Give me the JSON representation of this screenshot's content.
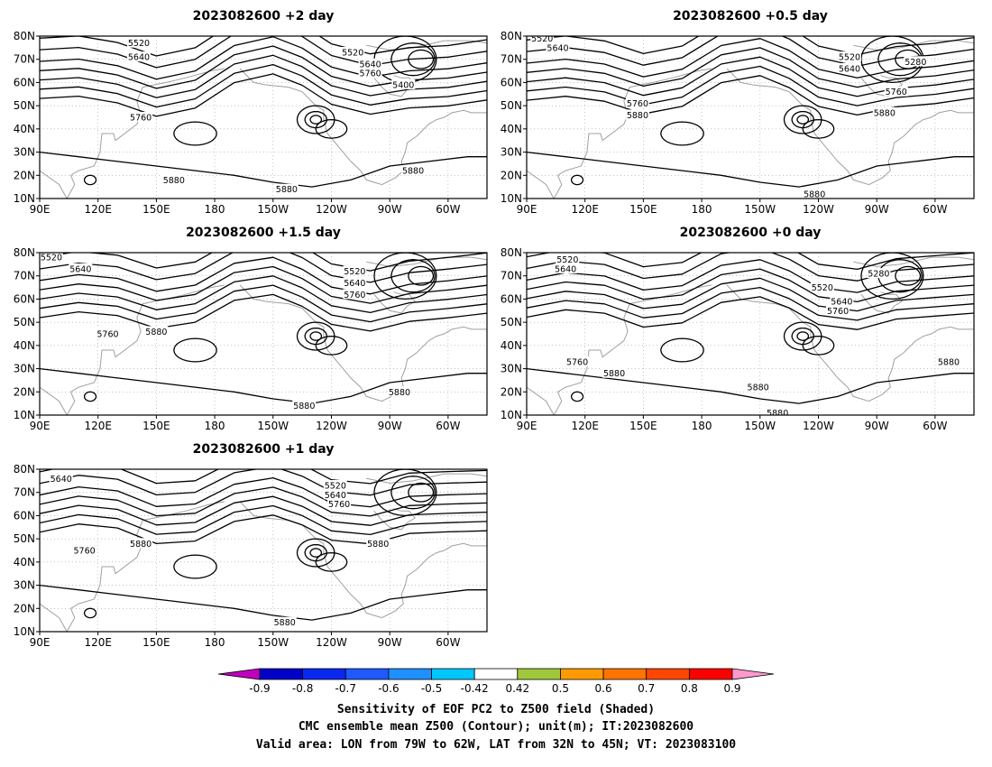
{
  "panels": [
    {
      "title": "2023082600 +2 day",
      "contour_labels": [
        {
          "text": "5520",
          "lon": 141,
          "lat": 77
        },
        {
          "text": "5640",
          "lon": 141,
          "lat": 71
        },
        {
          "text": "5760",
          "lon": 142,
          "lat": 45
        },
        {
          "text": "5520",
          "lon": 251,
          "lat": 73
        },
        {
          "text": "5640",
          "lon": 260,
          "lat": 68
        },
        {
          "text": "5760",
          "lon": 260,
          "lat": 64
        },
        {
          "text": "5400",
          "lon": 277,
          "lat": 59
        },
        {
          "text": "5880",
          "lon": 159,
          "lat": 18
        },
        {
          "text": "5880",
          "lon": 217,
          "lat": 14
        },
        {
          "text": "5880",
          "lon": 282,
          "lat": 22
        }
      ]
    },
    {
      "title": "2023082600 +0.5 day",
      "contour_labels": [
        {
          "text": "5520",
          "lon": 98,
          "lat": 79
        },
        {
          "text": "5640",
          "lon": 106,
          "lat": 75
        },
        {
          "text": "5760",
          "lon": 147,
          "lat": 51
        },
        {
          "text": "5880",
          "lon": 147,
          "lat": 46
        },
        {
          "text": "5520",
          "lon": 256,
          "lat": 71
        },
        {
          "text": "5640",
          "lon": 256,
          "lat": 66
        },
        {
          "text": "5280",
          "lon": 290,
          "lat": 69
        },
        {
          "text": "5760",
          "lon": 280,
          "lat": 56
        },
        {
          "text": "5880",
          "lon": 274,
          "lat": 47
        },
        {
          "text": "5880",
          "lon": 238,
          "lat": 12
        }
      ]
    },
    {
      "title": "2023082600 +1.5 day",
      "contour_labels": [
        {
          "text": "5520",
          "lon": 96,
          "lat": 78
        },
        {
          "text": "5640",
          "lon": 111,
          "lat": 73
        },
        {
          "text": "5760",
          "lon": 125,
          "lat": 45
        },
        {
          "text": "5880",
          "lon": 150,
          "lat": 46
        },
        {
          "text": "5520",
          "lon": 252,
          "lat": 72
        },
        {
          "text": "5640",
          "lon": 252,
          "lat": 67
        },
        {
          "text": "5760",
          "lon": 252,
          "lat": 62
        },
        {
          "text": "5880",
          "lon": 226,
          "lat": 14
        },
        {
          "text": "5880",
          "lon": 275,
          "lat": 20
        }
      ]
    },
    {
      "title": "2023082600 +0 day",
      "contour_labels": [
        {
          "text": "5520",
          "lon": 111,
          "lat": 77
        },
        {
          "text": "5640",
          "lon": 110,
          "lat": 73
        },
        {
          "text": "5760",
          "lon": 116,
          "lat": 33
        },
        {
          "text": "5880",
          "lon": 135,
          "lat": 28
        },
        {
          "text": "5520",
          "lon": 242,
          "lat": 65
        },
        {
          "text": "5640",
          "lon": 252,
          "lat": 59
        },
        {
          "text": "5760",
          "lon": 250,
          "lat": 55
        },
        {
          "text": "5280",
          "lon": 271,
          "lat": 71
        },
        {
          "text": "5880",
          "lon": 209,
          "lat": 22
        },
        {
          "text": "5880",
          "lon": 219,
          "lat": 11
        },
        {
          "text": "5880",
          "lon": 307,
          "lat": 33
        }
      ]
    },
    {
      "title": "2023082600 +1 day",
      "contour_labels": [
        {
          "text": "5640",
          "lon": 101,
          "lat": 76
        },
        {
          "text": "5760",
          "lon": 113,
          "lat": 45
        },
        {
          "text": "5880",
          "lon": 142,
          "lat": 48
        },
        {
          "text": "5520",
          "lon": 242,
          "lat": 73
        },
        {
          "text": "5640",
          "lon": 242,
          "lat": 69
        },
        {
          "text": "5760",
          "lon": 244,
          "lat": 65
        },
        {
          "text": "5880",
          "lon": 264,
          "lat": 48
        },
        {
          "text": "5880",
          "lon": 216,
          "lat": 14
        }
      ]
    }
  ],
  "axes": {
    "lat_ticks": [
      "80N",
      "70N",
      "60N",
      "50N",
      "40N",
      "30N",
      "20N",
      "10N"
    ],
    "lon_ticks": [
      "90E",
      "120E",
      "150E",
      "180",
      "150W",
      "120W",
      "90W",
      "60W"
    ],
    "lat_range": [
      10,
      80
    ],
    "lon_range": [
      90,
      320
    ]
  },
  "colorbar": {
    "colors": [
      "#c000c0",
      "#0000c8",
      "#0a28f0",
      "#1e5aff",
      "#1e90ff",
      "#00c8ff",
      "#ffffff",
      "#a0c83c",
      "#ff9b00",
      "#ff7300",
      "#ff4600",
      "#ff0000",
      "#ff99cc"
    ],
    "labels": [
      "-0.9",
      "-0.8",
      "-0.7",
      "-0.6",
      "-0.5",
      "-0.42",
      "0.42",
      "0.5",
      "0.6",
      "0.7",
      "0.8",
      "0.9"
    ]
  },
  "colors": {
    "contour": "#000000",
    "coastline": "#a0a0a0",
    "grid": "#a0a0a0"
  },
  "caption": {
    "line1": "Sensitivity of EOF PC2 to Z500 field (Shaded)",
    "line2": "CMC ensemble mean Z500 (Contour); unit(m); IT:2023082600",
    "line3": "Valid area: LON from 79W to 62W, LAT from 32N to 45N; VT: 2023083100"
  }
}
